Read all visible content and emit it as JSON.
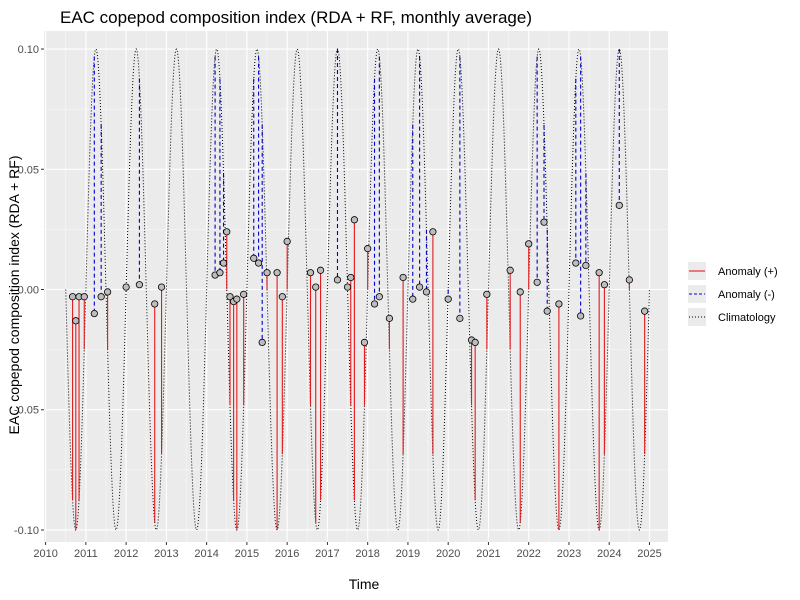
{
  "chart_data": {
    "type": "line",
    "title": "EAC copepod composition index (RDA + RF, monthly average)",
    "xlabel": "Time",
    "ylabel": "EAC copepod composition index (RDA + RF)",
    "xlim": [
      2009.96,
      2025.46
    ],
    "ylim": [
      -0.105,
      0.1075
    ],
    "x_ticks": [
      "2010",
      "2011",
      "2012",
      "2013",
      "2014",
      "2015",
      "2016",
      "2017",
      "2018",
      "2019",
      "2020",
      "2021",
      "2022",
      "2023",
      "2024",
      "2025"
    ],
    "y_ticks": [
      {
        "value": 0.1,
        "label": "0.10"
      },
      {
        "value": 0.05,
        "label": "0.05"
      },
      {
        "value": 0.0,
        "label": "0.00"
      },
      {
        "value": -0.05,
        "label": "-0.05"
      },
      {
        "value": -0.1,
        "label": "-0.10"
      }
    ],
    "grid": true,
    "legend_position": "right",
    "climatology": {
      "name": "Climatology",
      "amplitude": 0.1,
      "peak_phase_year": 2011.25,
      "period_years": 1.0,
      "color": "#000000"
    },
    "series": [
      {
        "name": "Anomaly (+)",
        "color": "#e41a1c",
        "style": "solid"
      },
      {
        "name": "Anomaly (-)",
        "color": "#0000cd",
        "style": "dashed"
      },
      {
        "name": "Climatology",
        "color": "#000000",
        "style": "dotted"
      }
    ],
    "observations": [
      [
        2010.67,
        -0.003
      ],
      [
        2010.75,
        -0.013
      ],
      [
        2010.83,
        -0.003
      ],
      [
        2010.96,
        -0.003
      ],
      [
        2011.21,
        -0.01
      ],
      [
        2011.38,
        -0.003
      ],
      [
        2011.54,
        -0.001
      ],
      [
        2012.0,
        0.001
      ],
      [
        2012.33,
        0.002
      ],
      [
        2012.71,
        -0.006
      ],
      [
        2012.88,
        0.001
      ],
      [
        2014.21,
        0.006
      ],
      [
        2014.33,
        0.007
      ],
      [
        2014.42,
        0.011
      ],
      [
        2014.5,
        0.024
      ],
      [
        2014.58,
        -0.003
      ],
      [
        2014.67,
        -0.005
      ],
      [
        2014.75,
        -0.004
      ],
      [
        2014.92,
        -0.002
      ],
      [
        2015.17,
        0.013
      ],
      [
        2015.29,
        0.011
      ],
      [
        2015.38,
        -0.022
      ],
      [
        2015.5,
        0.007
      ],
      [
        2015.75,
        0.007
      ],
      [
        2015.88,
        -0.003
      ],
      [
        2016.0,
        0.02
      ],
      [
        2016.58,
        0.007
      ],
      [
        2016.71,
        0.001
      ],
      [
        2016.83,
        0.008
      ],
      [
        2017.25,
        0.004
      ],
      [
        2017.5,
        0.001
      ],
      [
        2017.58,
        0.005
      ],
      [
        2017.67,
        0.029
      ],
      [
        2017.92,
        -0.022
      ],
      [
        2018.0,
        0.017
      ],
      [
        2018.17,
        -0.006
      ],
      [
        2018.29,
        -0.003
      ],
      [
        2018.54,
        -0.012
      ],
      [
        2018.88,
        0.005
      ],
      [
        2019.12,
        -0.004
      ],
      [
        2019.29,
        0.001
      ],
      [
        2019.46,
        -0.001
      ],
      [
        2019.62,
        0.024
      ],
      [
        2020.0,
        -0.004
      ],
      [
        2020.29,
        -0.012
      ],
      [
        2020.58,
        -0.021
      ],
      [
        2020.67,
        -0.022
      ],
      [
        2020.96,
        -0.002
      ],
      [
        2021.54,
        0.008
      ],
      [
        2021.79,
        -0.001
      ],
      [
        2022.0,
        0.019
      ],
      [
        2022.21,
        0.003
      ],
      [
        2022.38,
        0.028
      ],
      [
        2022.46,
        -0.009
      ],
      [
        2022.75,
        -0.006
      ],
      [
        2023.17,
        0.011
      ],
      [
        2023.29,
        -0.011
      ],
      [
        2023.42,
        0.01
      ],
      [
        2023.75,
        0.007
      ],
      [
        2023.88,
        0.002
      ],
      [
        2024.25,
        0.035
      ],
      [
        2024.5,
        0.004
      ],
      [
        2024.88,
        -0.009
      ]
    ]
  }
}
